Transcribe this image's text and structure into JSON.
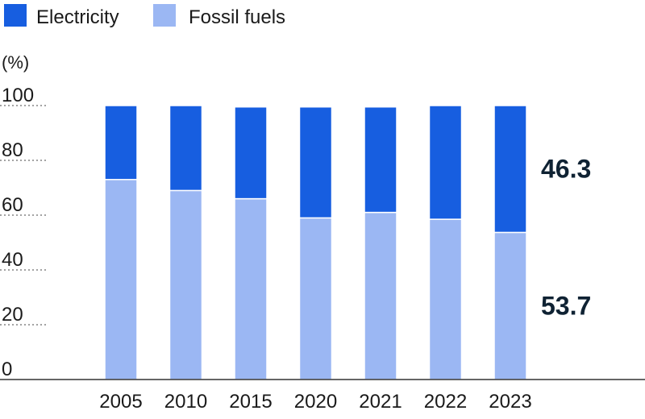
{
  "chart_data": {
    "type": "bar",
    "stacked": true,
    "unit": "(%)",
    "categories": [
      "2005",
      "2010",
      "2015",
      "2020",
      "2021",
      "2022",
      "2023"
    ],
    "series": [
      {
        "name": "Fossil fuels",
        "color": "#9bb7f3",
        "values": [
          73.0,
          69.0,
          66.0,
          59.0,
          61.0,
          58.5,
          53.7
        ]
      },
      {
        "name": "Electricity",
        "color": "#175ee0",
        "values": [
          27.0,
          31.0,
          33.5,
          40.5,
          38.5,
          41.5,
          46.3
        ]
      }
    ],
    "data_labels": [
      {
        "category": "2023",
        "series": "Electricity",
        "text": "46.3"
      },
      {
        "category": "2023",
        "series": "Fossil fuels",
        "text": "53.7"
      }
    ],
    "ylim": [
      0,
      100
    ],
    "yticks": [
      0,
      20,
      40,
      60,
      80,
      100
    ],
    "grid": "dotted horizontal",
    "legend_position": "top-left"
  }
}
